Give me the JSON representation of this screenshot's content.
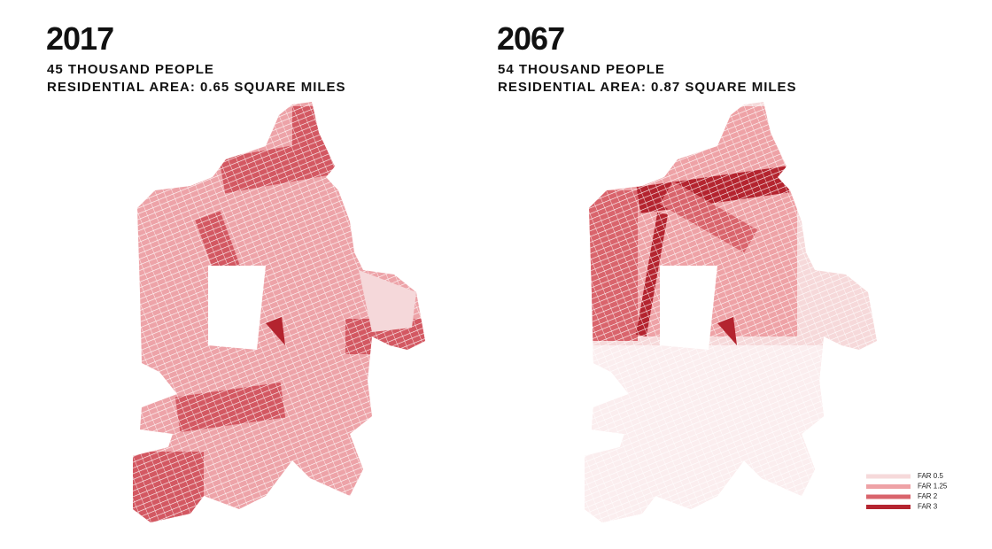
{
  "panels": [
    {
      "year": "2017",
      "population": "45 THOUSAND PEOPLE",
      "area": "RESIDENTIAL AREA: 0.65 SQUARE MILES"
    },
    {
      "year": "2067",
      "population": "54 THOUSAND PEOPLE",
      "area": "RESIDENTIAL AREA: 0.87 SQUARE MILES"
    }
  ],
  "legend": {
    "items": [
      {
        "label": "FAR 0.5",
        "color": "#f6d9da"
      },
      {
        "label": "FAR 1.25",
        "color": "#eea2a6"
      },
      {
        "label": "FAR 2",
        "color": "#d9646c"
      },
      {
        "label": "FAR 3",
        "color": "#b4242f"
      }
    ]
  }
}
